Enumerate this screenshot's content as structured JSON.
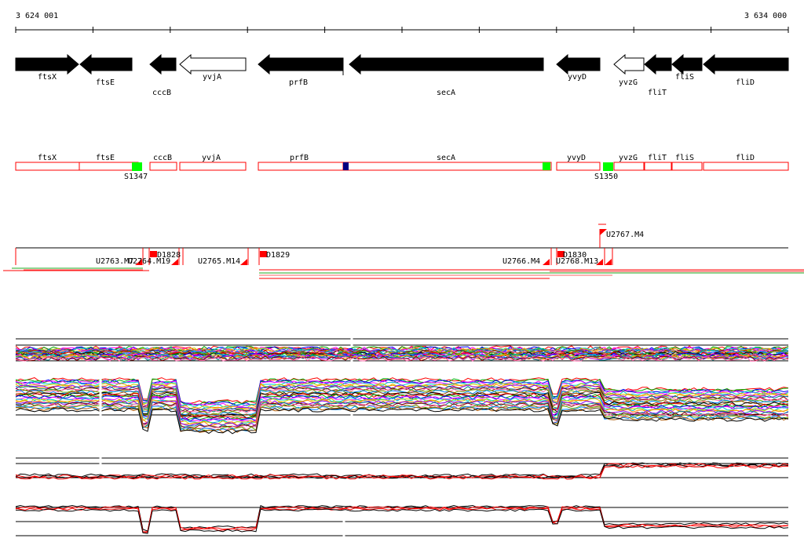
{
  "coords": {
    "start": "3 624 001",
    "end": "3 634 000"
  },
  "colors": {
    "gene_fill": "#000000",
    "gene_outline_fill": "#ffffff",
    "track_box": "#ff0000",
    "promoter_green": "#00ff00",
    "promoter_blue": "#000080",
    "marker_red": "#ff0000"
  },
  "genes": [
    {
      "name": "ftsX",
      "strand": "forward",
      "filled": true
    },
    {
      "name": "ftsE",
      "strand": "reverse",
      "filled": true
    },
    {
      "name": "cccB",
      "strand": "reverse",
      "filled": true
    },
    {
      "name": "yvjA",
      "strand": "reverse",
      "filled": false
    },
    {
      "name": "prfB",
      "strand": "reverse",
      "filled": true
    },
    {
      "name": "secA",
      "strand": "reverse",
      "filled": true
    },
    {
      "name": "yvyD",
      "strand": "reverse",
      "filled": true
    },
    {
      "name": "yvzG",
      "strand": "reverse",
      "filled": false
    },
    {
      "name": "fliT",
      "strand": "reverse",
      "filled": true
    },
    {
      "name": "fliS",
      "strand": "reverse",
      "filled": true
    },
    {
      "name": "fliD",
      "strand": "reverse",
      "filled": true
    }
  ],
  "track_labels": [
    "ftsX",
    "ftsE",
    "cccB",
    "yvjA",
    "prfB",
    "secA",
    "yvyD",
    "yvzG",
    "fliT",
    "fliS",
    "fliD"
  ],
  "sites": [
    "S1347",
    "S1350"
  ],
  "transcripts": [
    "U2763.M7",
    "U2764.M19",
    "D1828",
    "U2765.M14",
    "D1829",
    "U2766.M4",
    "D1830",
    "U2767.M4",
    "U2768.M13"
  ]
}
